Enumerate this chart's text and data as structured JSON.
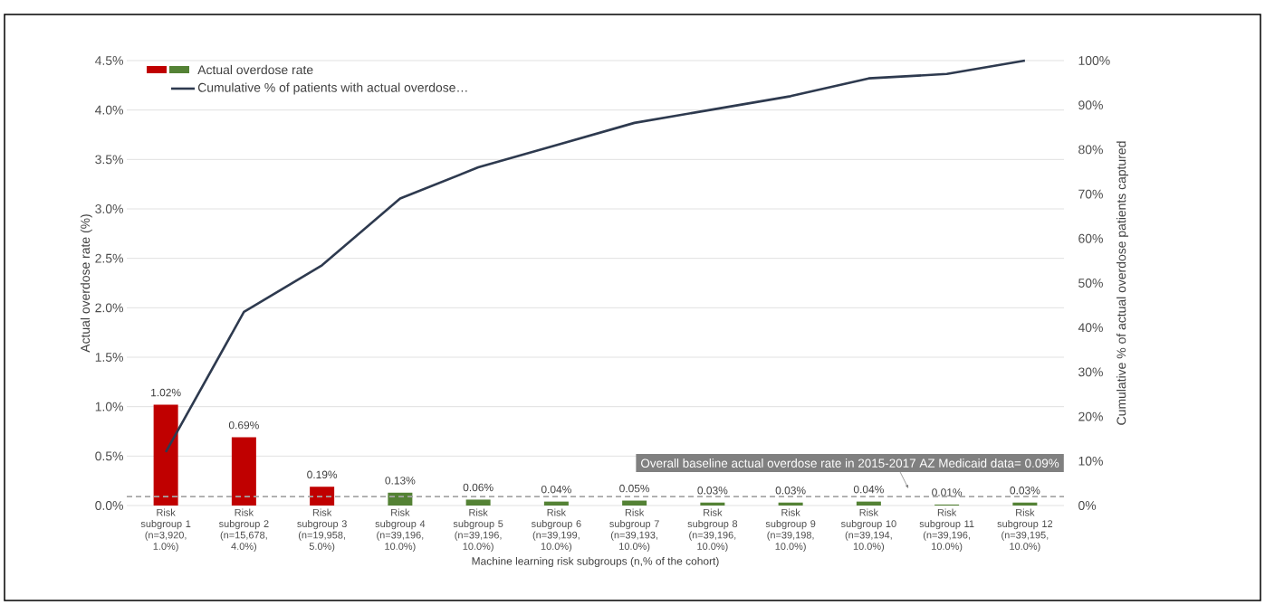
{
  "chart_data": {
    "type": "bar",
    "categories": [
      "Risk subgroup 1 (n=3,920, 1.0%)",
      "Risk subgroup 2 (n=15,678, 4.0%)",
      "Risk subgroup 3 (n=19,958, 5.0%)",
      "Risk subgroup 4 (n=39,196, 10.0%)",
      "Risk subgroup 5 (n=39,196, 10.0%)",
      "Risk subgroup 6 (n=39,199, 10.0%)",
      "Risk subgroup 7 (n=39,193, 10.0%)",
      "Risk subgroup 8 (n=39,196, 10.0%)",
      "Risk subgroup 9 (n=39,198, 10.0%)",
      "Risk subgroup 10 (n=39,194, 10.0%)",
      "Risk subgroup 11 (n=39,196, 10.0%)",
      "Risk subgroup 12 (n=39,195, 10.0%)"
    ],
    "xlabel": "Machine learning risk subgroups (n,% of the cohort)",
    "ylabel": "Actual overdose rate (%)",
    "y2label": "Cumulative % of actual overdose patients captured",
    "ylim": [
      0,
      4.5
    ],
    "yticks": [
      {
        "value": 0,
        "label": "0.0%"
      },
      {
        "value": 0.5,
        "label": "0.5%"
      },
      {
        "value": 1,
        "label": "1.0%"
      },
      {
        "value": 1.5,
        "label": "1.5%"
      },
      {
        "value": 2,
        "label": "2.0%"
      },
      {
        "value": 2.5,
        "label": "2.5%"
      },
      {
        "value": 3,
        "label": "3.0%"
      },
      {
        "value": 3.5,
        "label": "3.5%"
      },
      {
        "value": 4,
        "label": "4.0%"
      },
      {
        "value": 4.5,
        "label": "4.5%"
      }
    ],
    "y2lim": [
      0,
      100
    ],
    "y2ticks": [
      {
        "value": 0,
        "label": "0%"
      },
      {
        "value": 10,
        "label": "10%"
      },
      {
        "value": 20,
        "label": "20%"
      },
      {
        "value": 30,
        "label": "30%"
      },
      {
        "value": 40,
        "label": "40%"
      },
      {
        "value": 50,
        "label": "50%"
      },
      {
        "value": 60,
        "label": "60%"
      },
      {
        "value": 70,
        "label": "70%"
      },
      {
        "value": 80,
        "label": "80%"
      },
      {
        "value": 90,
        "label": "90%"
      },
      {
        "value": 100,
        "label": "100%"
      }
    ],
    "grid": "y",
    "legend": "top left",
    "series": [
      {
        "name": "Actual overdose rate",
        "values": [
          1.02,
          0.69,
          0.19,
          0.13,
          0.06,
          0.04,
          0.05,
          0.03,
          0.03,
          0.04,
          0.01,
          0.03
        ],
        "value_labels": [
          "1.02%",
          "0.69%",
          "0.19%",
          "0.13%",
          "0.06%",
          "0.04%",
          "0.05%",
          "0.03%",
          "0.03%",
          "0.04%",
          "0.01%",
          "0.03%"
        ],
        "colors": [
          "#c00000",
          "#c00000",
          "#c00000",
          "#548235",
          "#548235",
          "#548235",
          "#548235",
          "#548235",
          "#548235",
          "#548235",
          "#548235",
          "#548235"
        ]
      },
      {
        "name": "Cumulative % of patients with actual overdose…",
        "type": "line",
        "axis": "y2",
        "color": "#2e3a4f",
        "values": [
          12,
          43.5,
          54,
          69,
          76,
          81,
          86,
          89,
          92,
          96,
          97,
          100
        ]
      }
    ],
    "ref_lines": [
      {
        "axis": "y",
        "value": 0.09,
        "label": "Overall baseline actual overdose rate in 2015-2017 AZ Medicaid data= 0.09%",
        "color": "#a6a6a6",
        "line_style": "dashed"
      }
    ]
  }
}
